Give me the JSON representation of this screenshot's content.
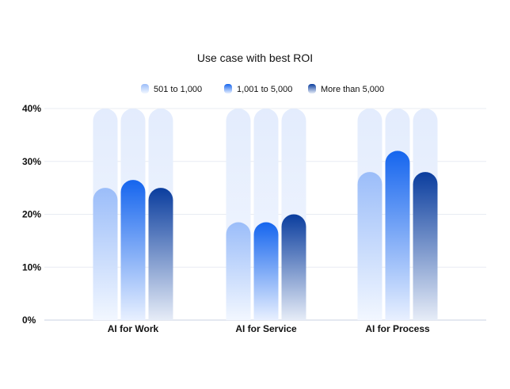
{
  "chart_data": {
    "type": "bar",
    "title": "Use case with best ROI",
    "categories": [
      "AI for Work",
      "AI for Service",
      "AI for Process"
    ],
    "series": [
      {
        "name": "501 to 1,000",
        "values": [
          25,
          18.5,
          28
        ]
      },
      {
        "name": "1,001 to 5,000",
        "values": [
          26.5,
          18.5,
          32
        ]
      },
      {
        "name": "More than 5,000",
        "values": [
          25,
          20,
          28
        ]
      }
    ],
    "yticks": [
      "0%",
      "10%",
      "20%",
      "30%",
      "40%"
    ],
    "ylim": [
      0,
      40
    ],
    "grid": true,
    "legend_position": "top",
    "colors": {
      "series_top": [
        "#9bbdf9",
        "#1565ee",
        "#0a3d9e"
      ],
      "series_bottom": [
        "#f2f7ff",
        "#e8f0ff",
        "#e6ecf7"
      ],
      "track": "#e3ecfd"
    }
  }
}
